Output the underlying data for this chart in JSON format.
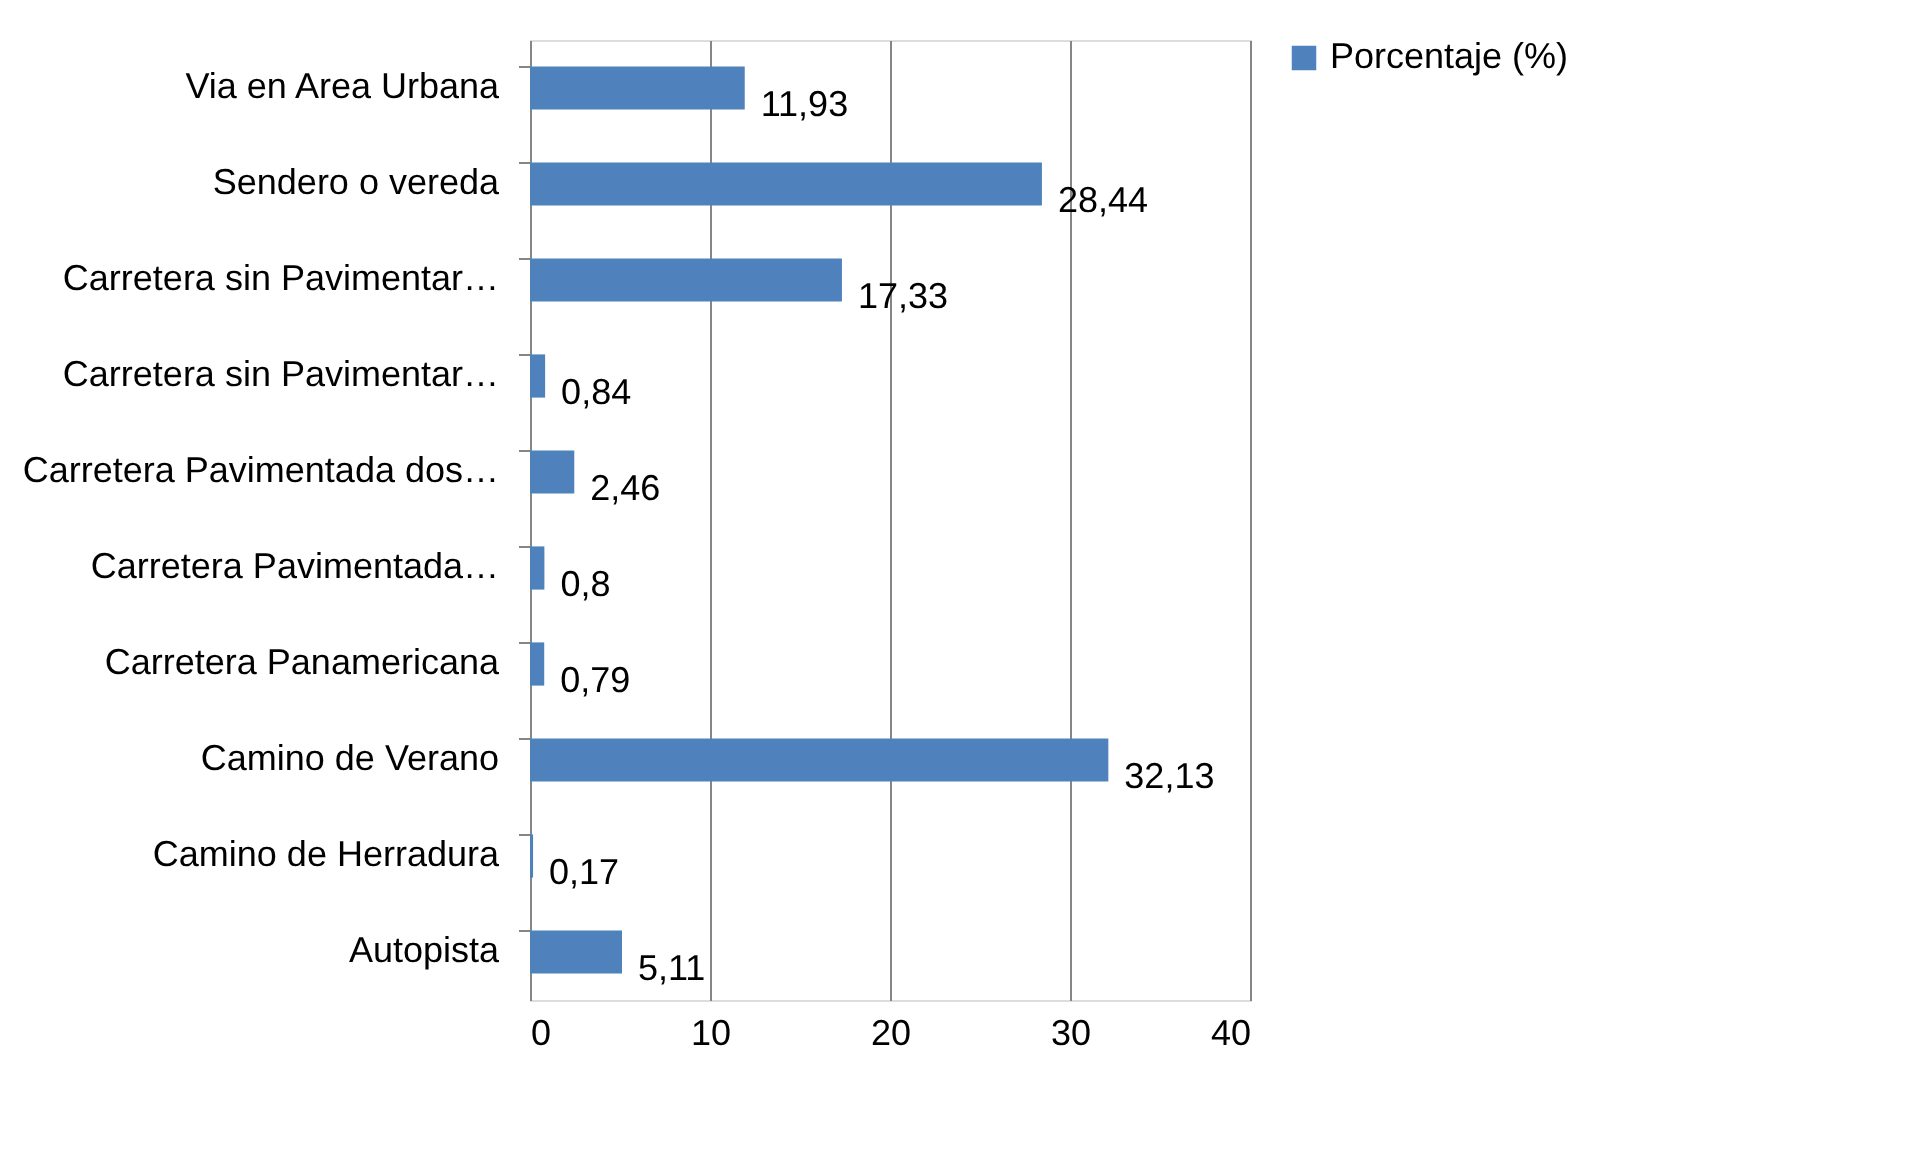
{
  "chart_data": {
    "type": "bar",
    "orientation": "horizontal",
    "categories": [
      "Via en Area Urbana",
      "Sendero o vereda",
      "Carretera sin Pavimentar…",
      "Carretera sin Pavimentar…",
      "Carretera Pavimentada dos…",
      "Carretera Pavimentada…",
      "Carretera Panamericana",
      "Camino de Verano",
      "Camino de Herradura",
      "Autopista"
    ],
    "series": [
      {
        "name": "Porcentaje (%)",
        "color": "#4f81bd",
        "values": [
          11.93,
          28.44,
          17.33,
          0.84,
          2.46,
          0.8,
          0.79,
          32.13,
          0.17,
          5.11
        ],
        "value_labels": [
          "11,93",
          "28,44",
          "17,33",
          "0,84",
          "2,46",
          "0,8",
          "0,79",
          "32,13",
          "0,17",
          "5,11"
        ]
      }
    ],
    "xlim": [
      0,
      40
    ],
    "xticks": [
      0,
      10,
      20,
      30,
      40
    ],
    "grid": "x",
    "legend": "right"
  }
}
